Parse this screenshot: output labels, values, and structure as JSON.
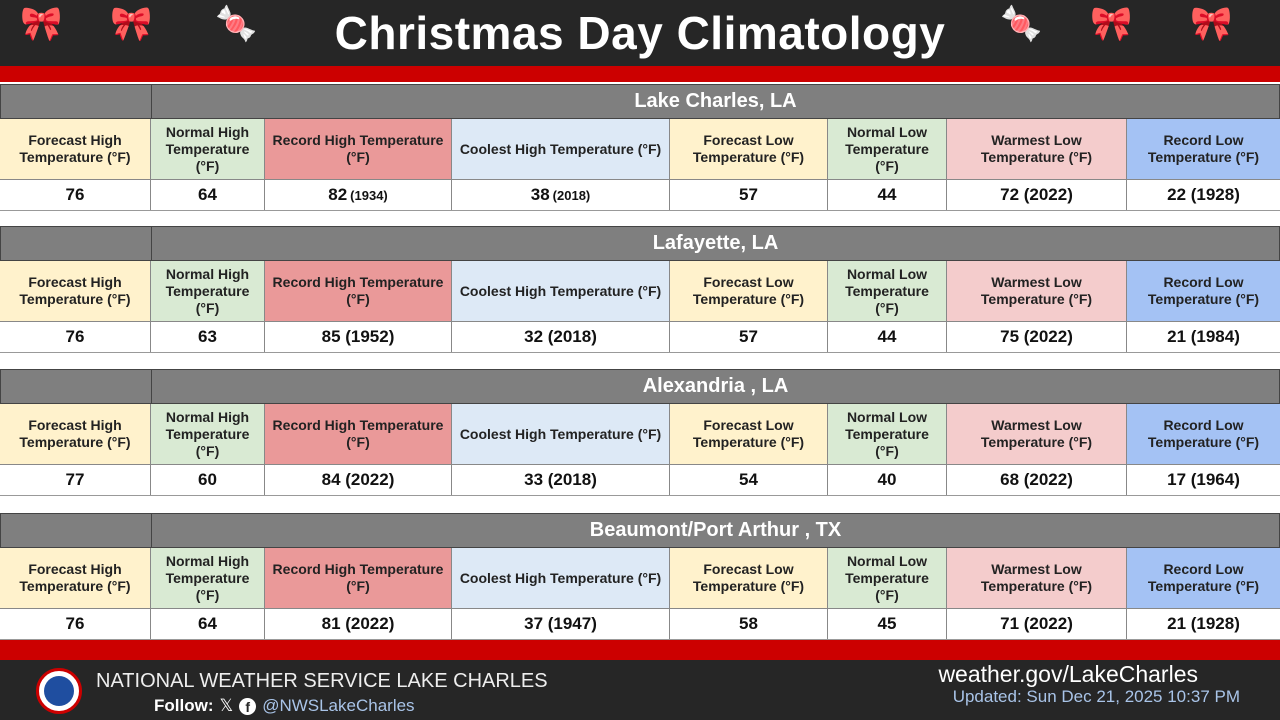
{
  "title": "Christmas Day Climatology",
  "columns": [
    "Forecast High Temperature (°F)",
    "Normal High Temperature (°F)",
    "Record High Temperature (°F)",
    "Coolest High Temperature (°F)",
    "Forecast Low Temperature (°F)",
    "Normal Low Temperature (°F)",
    "Warmest Low Temperature (°F)",
    "Record Low Temperature (°F)"
  ],
  "column_colors": [
    "#fff2cc",
    "#d9ead3",
    "#ea9999",
    "#dde9f6",
    "#fff2cc",
    "#d9ead3",
    "#f4cccc",
    "#a4c2f4"
  ],
  "locations": [
    {
      "name": "Lake Charles, LA",
      "values": [
        "76",
        "64",
        "82 (1934)",
        "38 (2018)",
        "57",
        "44",
        "72 (2022)",
        "22 (1928)"
      ]
    },
    {
      "name": "Lafayette, LA",
      "values": [
        "76",
        "63",
        "85 (1952)",
        "32 (2018)",
        "57",
        "44",
        "75 (2022)",
        "21 (1984)"
      ]
    },
    {
      "name": "Alexandria , LA",
      "values": [
        "77",
        "60",
        "84 (2022)",
        "33 (2018)",
        "54",
        "40",
        "68 (2022)",
        "17 (1964)"
      ]
    },
    {
      "name": "Beaumont/Port Arthur , TX",
      "values": [
        "76",
        "64",
        "81 (2022)",
        "37 (1947)",
        "58",
        "45",
        "71 (2022)",
        "21 (1928)"
      ]
    }
  ],
  "footer": {
    "office": "NATIONAL WEATHER SERVICE LAKE CHARLES",
    "follow_label": "Follow:",
    "handle": "@NWSLakeCharles",
    "website": "weather.gov/LakeCharles",
    "updated": "Updated: Sun Dec 21, 2025 10:37 PM"
  },
  "logo_text": "NATIONAL WEATHER SERVICE",
  "accent_red": "#cc0000"
}
